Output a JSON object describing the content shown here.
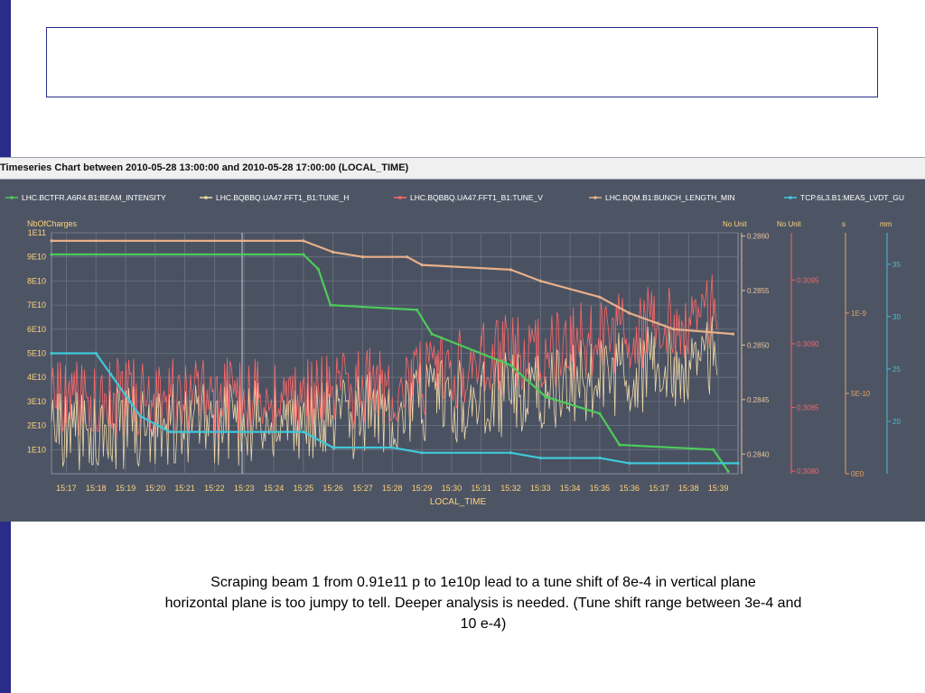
{
  "chart_data": {
    "type": "line",
    "title": "Timeseries Chart between 2010-05-28 13:00:00 and 2010-05-28 17:00:00 (LOCAL_TIME)",
    "xlabel": "LOCAL_TIME",
    "x_ticks": [
      "15:17",
      "15:18",
      "15:19",
      "15:20",
      "15:21",
      "15:22",
      "15:23",
      "15:24",
      "15:25",
      "15:26",
      "15:27",
      "15:28",
      "15:29",
      "15:30",
      "15:31",
      "15:32",
      "15:33",
      "15:34",
      "15:35",
      "15:36",
      "15:37",
      "15:38",
      "15:39"
    ],
    "xlim": [
      "15:16:30",
      "15:39:40"
    ],
    "grid": true,
    "legend_position": "top",
    "axes": [
      {
        "id": "charges",
        "unit": "NbOfCharges",
        "ticks": [
          "1E10",
          "2E10",
          "3E10",
          "4E10",
          "5E10",
          "6E10",
          "7E10",
          "8E10",
          "9E10",
          "1E11"
        ],
        "range": [
          0,
          100000000000.0
        ],
        "color": "#ffd27a"
      },
      {
        "id": "tune_h",
        "unit": "No Unit",
        "ticks": [
          "0.2840",
          "0.2845",
          "0.2850",
          "0.2855",
          "0.2860"
        ],
        "range": [
          0.28382,
          0.28603
        ],
        "color": "#e8c39a"
      },
      {
        "id": "tune_v",
        "unit": "No Unit",
        "ticks": [
          "0.3080",
          "0.3085",
          "0.3090",
          "0.3095"
        ],
        "range": [
          0.30798,
          0.30987
        ],
        "color": "#ff6060"
      },
      {
        "id": "bunch",
        "unit": "s",
        "ticks": [
          "0E0",
          "5E-10",
          "1E-9"
        ],
        "range": [
          0,
          1.5e-09
        ],
        "color": "#e8a060"
      },
      {
        "id": "lvdt",
        "unit": "mm",
        "ticks": [
          "20",
          "25",
          "30",
          "35"
        ],
        "range": [
          15,
          38
        ],
        "color": "#40c0d0"
      }
    ],
    "series": [
      {
        "name": "LHC.BCTFR.A6R4.B1:BEAM_INTENSITY",
        "color": "#4ccc5a",
        "axis": "charges",
        "x": [
          "15:16:30",
          "15:25:00",
          "15:25:30",
          "15:25:55",
          "15:28:50",
          "15:29:20",
          "15:32:00",
          "15:33:10",
          "15:35:00",
          "15:35:40",
          "15:38:50",
          "15:39:20"
        ],
        "y": [
          91000000000.0,
          91000000000.0,
          85000000000.0,
          70000000000.0,
          68000000000.0,
          58000000000.0,
          45000000000.0,
          32000000000.0,
          25000000000.0,
          12000000000.0,
          10000000000.0,
          1000000000.0
        ]
      },
      {
        "name": "LHC.BQBBQ.UA47.FFT1_B1:TUNE_H",
        "color": "#f0d8a8",
        "axis": "tune_h",
        "x": [
          "15:16:30",
          "15:24:00",
          "15:26:00",
          "15:28:00",
          "15:29:30",
          "15:31:00",
          "15:33:00",
          "15:35:00",
          "15:37:00",
          "15:39:00"
        ],
        "y": [
          0.2842,
          0.2843,
          0.2843,
          0.2844,
          0.2845,
          0.2845,
          0.2846,
          0.2847,
          0.2848,
          0.2849
        ]
      },
      {
        "name": "LHC.BQBBQ.UA47.FFT1_B1:TUNE_V",
        "color": "#ff6868",
        "axis": "tune_v",
        "x": [
          "15:16:30",
          "15:24:00",
          "15:26:00",
          "15:28:00",
          "15:29:30",
          "15:31:00",
          "15:33:00",
          "15:35:00",
          "15:37:00",
          "15:39:00"
        ],
        "y": [
          0.30857,
          0.30857,
          0.30862,
          0.30867,
          0.30875,
          0.30888,
          0.30895,
          0.30905,
          0.30915,
          0.30925
        ]
      },
      {
        "name": "LHC.BQM.B1:BUNCH_LENGTH_MIN",
        "color": "#e8b088",
        "axis": "bunch",
        "x": [
          "15:16:30",
          "15:25:00",
          "15:26:00",
          "15:27:00",
          "15:28:30",
          "15:29:00",
          "15:32:00",
          "15:33:00",
          "15:35:00",
          "15:36:00",
          "15:37:30",
          "15:39:30"
        ],
        "y": [
          1.45e-09,
          1.45e-09,
          1.38e-09,
          1.35e-09,
          1.35e-09,
          1.3e-09,
          1.27e-09,
          1.2e-09,
          1.1e-09,
          1e-09,
          9e-10,
          8.7e-10
        ]
      },
      {
        "name": "TCP.6L3.B1:MEAS_LVDT_GU",
        "color": "#40c8d8",
        "axis": "lvdt",
        "x": [
          "15:16:30",
          "15:18:00",
          "15:18:30",
          "15:19:30",
          "15:20:30",
          "15:25:00",
          "15:26:00",
          "15:28:00",
          "15:29:00",
          "15:32:00",
          "15:33:00",
          "15:35:00",
          "15:36:00",
          "15:39:40"
        ],
        "y": [
          26.5,
          26.5,
          24.5,
          20.5,
          19.0,
          19.0,
          17.5,
          17.5,
          17.0,
          17.0,
          16.5,
          16.5,
          16.0,
          16.0
        ]
      }
    ]
  },
  "caption": {
    "line1": "Scraping beam 1 from 0.91e11 p to 1e10p lead to a tune shift of  8e-4 in vertical plane",
    "line2": "horizontal plane is too jumpy to tell.  Deeper analysis is needed. (Tune shift range between 3e-4 and",
    "line3": "10 e-4)"
  },
  "colors": {
    "panel": "#4d5565",
    "header": "#f0f0f0",
    "axis_label": "#ffd27a",
    "accent": "#2b2b8a"
  }
}
